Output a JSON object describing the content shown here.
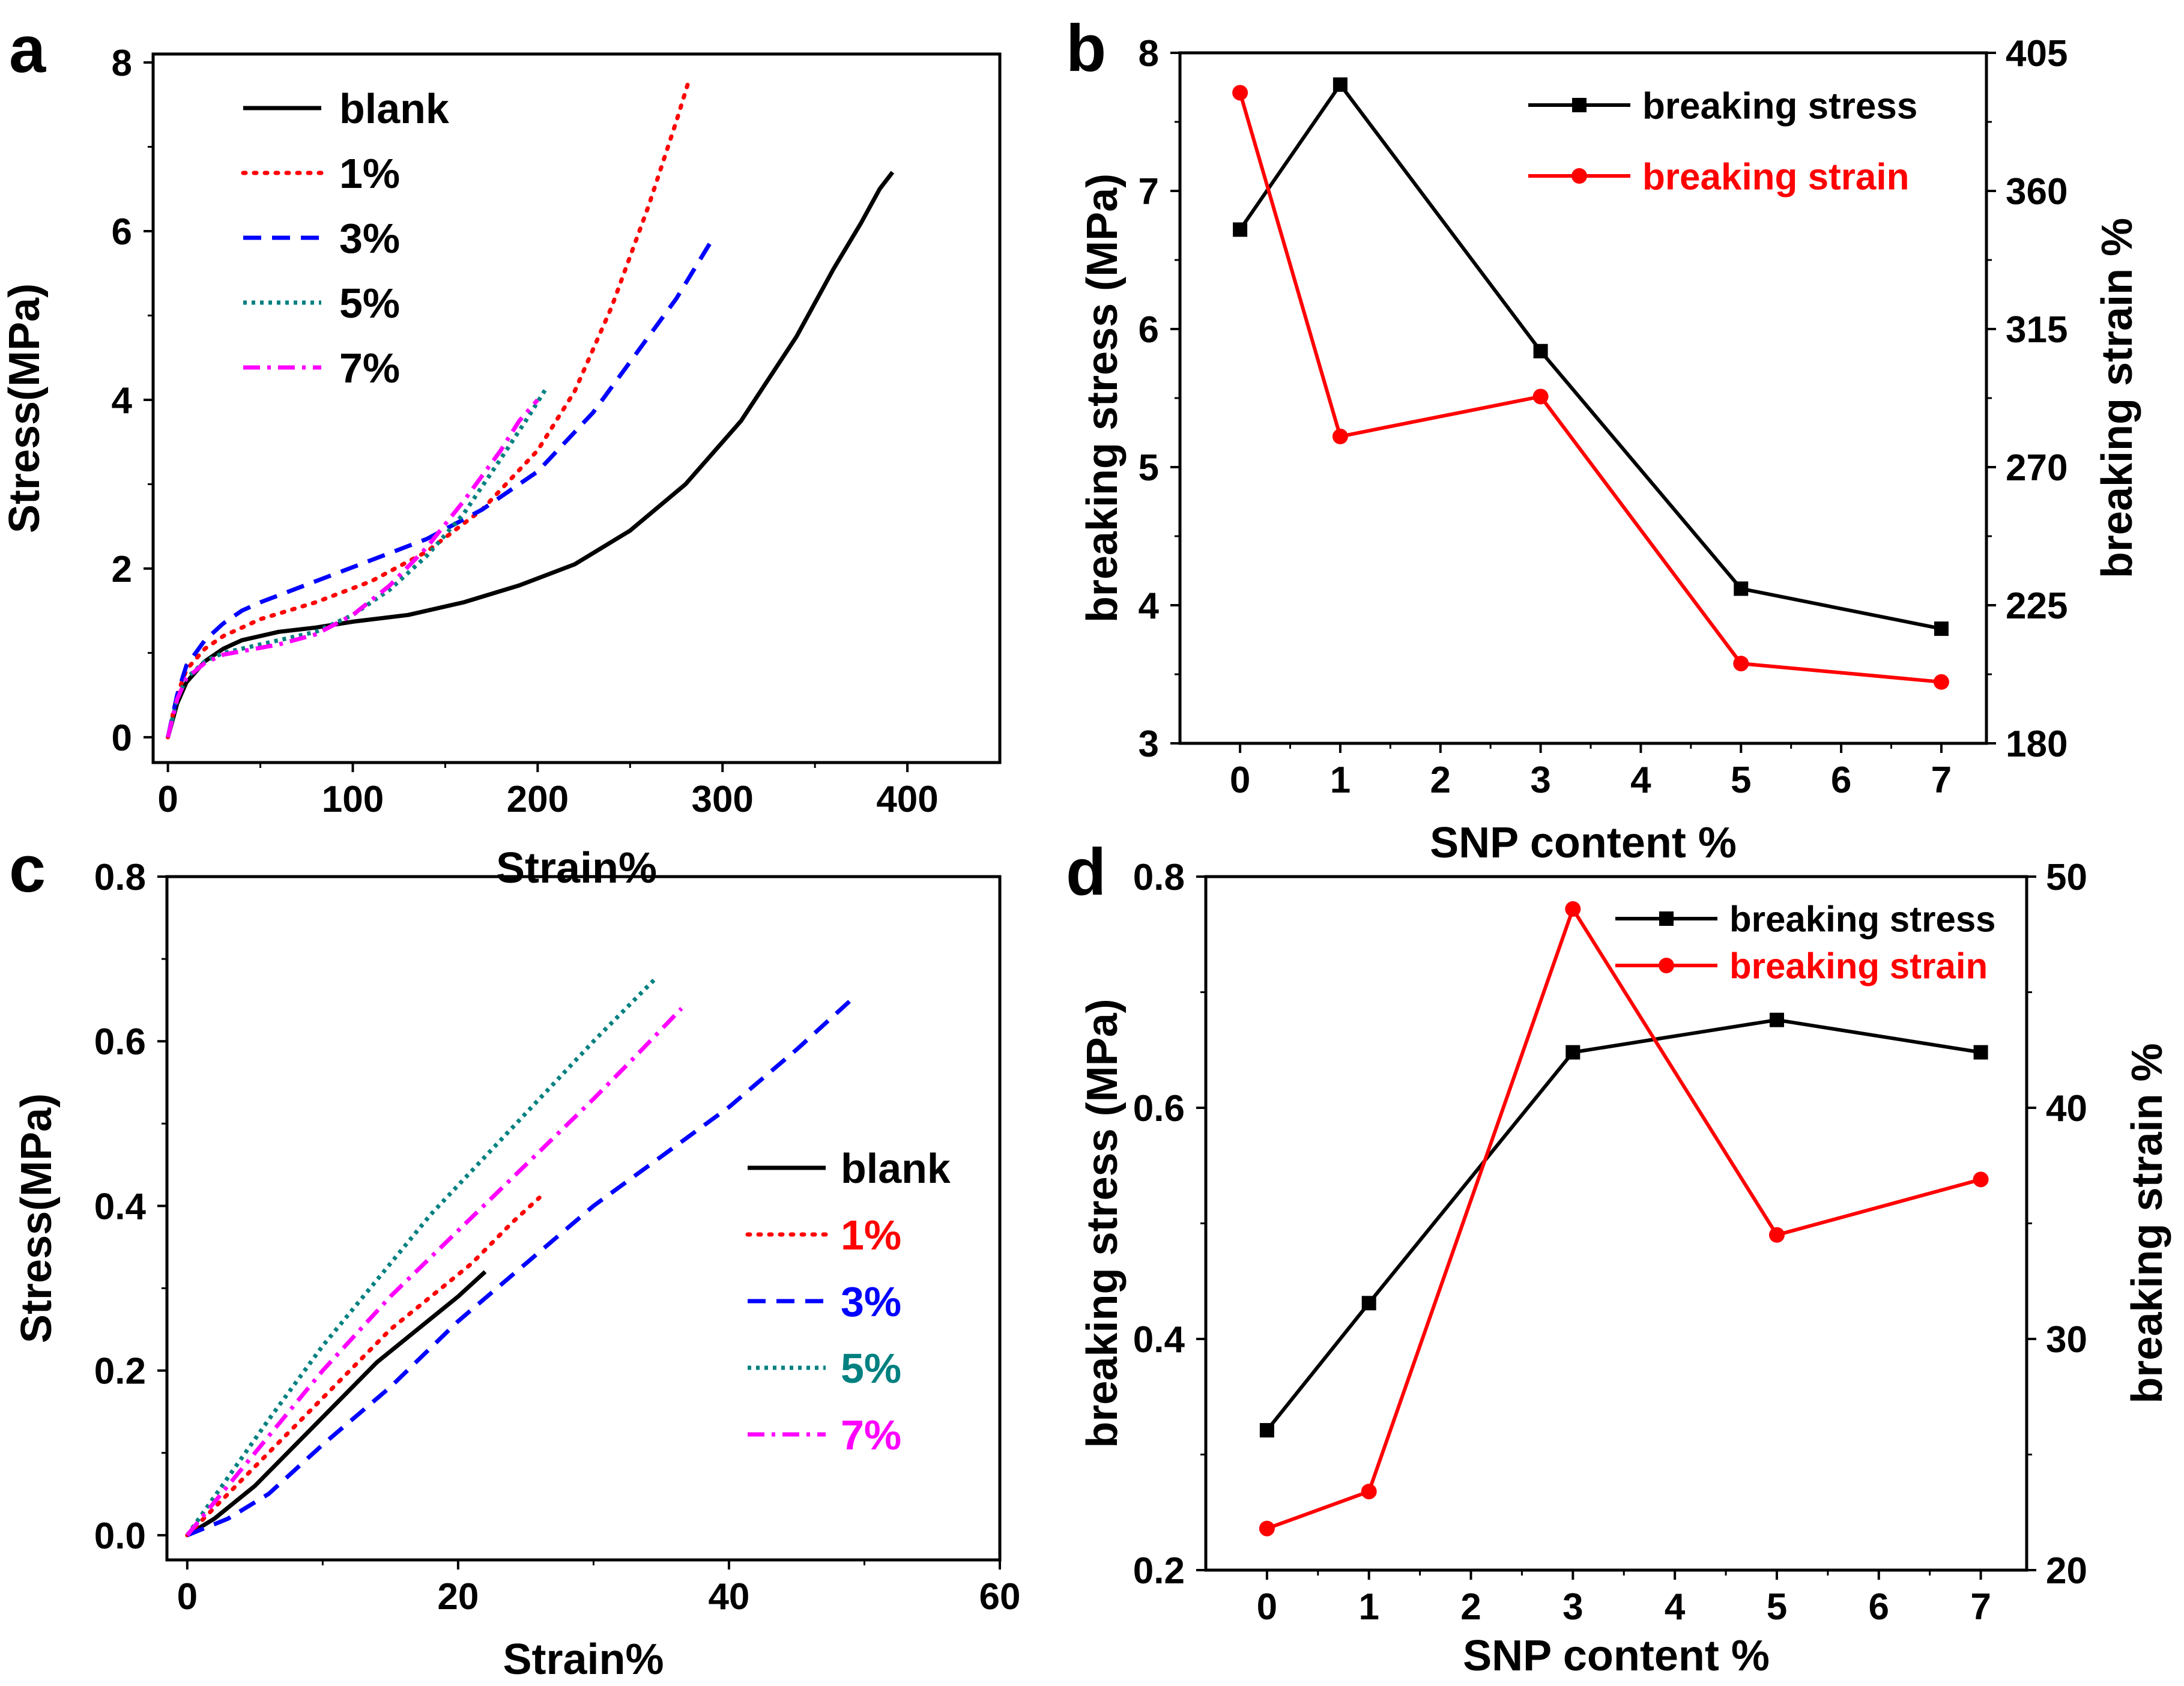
{
  "chart_data": [
    {
      "panel": "a",
      "type": "line",
      "xlabel": "Strain%",
      "ylabel": "Stress(MPa)",
      "xlim": [
        -8,
        450
      ],
      "ylim": [
        -0.3,
        8.1
      ],
      "xticks": [
        0,
        100,
        200,
        300,
        400
      ],
      "yticks": [
        0,
        2,
        4,
        6,
        8
      ],
      "legend_position": "top-left",
      "series": [
        {
          "name": "blank",
          "color": "#000000",
          "dash": "solid",
          "x": [
            0,
            5,
            10,
            20,
            30,
            40,
            60,
            80,
            100,
            130,
            160,
            190,
            220,
            250,
            280,
            310,
            340,
            360,
            375,
            385,
            392
          ],
          "y": [
            0,
            0.4,
            0.65,
            0.9,
            1.05,
            1.15,
            1.25,
            1.3,
            1.37,
            1.45,
            1.6,
            1.8,
            2.05,
            2.45,
            3.0,
            3.75,
            4.75,
            5.55,
            6.1,
            6.5,
            6.7
          ]
        },
        {
          "name": "1%",
          "color": "#ff0000",
          "dash": "dot",
          "x": [
            0,
            5,
            10,
            20,
            30,
            50,
            80,
            110,
            140,
            170,
            200,
            220,
            240,
            260,
            275,
            282
          ],
          "y": [
            0,
            0.5,
            0.8,
            1.05,
            1.2,
            1.4,
            1.6,
            1.85,
            2.2,
            2.7,
            3.4,
            4.1,
            5.1,
            6.3,
            7.3,
            7.8
          ]
        },
        {
          "name": "3%",
          "color": "#0000ff",
          "dash": "dash",
          "x": [
            0,
            5,
            10,
            20,
            30,
            40,
            50,
            80,
            110,
            140,
            170,
            200,
            230,
            255,
            275,
            293
          ],
          "y": [
            0,
            0.5,
            0.85,
            1.15,
            1.35,
            1.5,
            1.6,
            1.85,
            2.1,
            2.35,
            2.7,
            3.15,
            3.85,
            4.6,
            5.2,
            5.85
          ]
        },
        {
          "name": "5%",
          "color": "#008080",
          "dash": "shortdot",
          "x": [
            0,
            5,
            10,
            20,
            30,
            40,
            60,
            80,
            100,
            120,
            140,
            160,
            180,
            195,
            205
          ],
          "y": [
            0,
            0.45,
            0.7,
            0.9,
            1.0,
            1.05,
            1.15,
            1.25,
            1.45,
            1.75,
            2.15,
            2.65,
            3.3,
            3.8,
            4.15
          ]
        },
        {
          "name": "7%",
          "color": "#ff00ff",
          "dash": "dashdot",
          "x": [
            0,
            5,
            10,
            20,
            30,
            40,
            60,
            80,
            100,
            120,
            140,
            160,
            180,
            190,
            200
          ],
          "y": [
            0,
            0.45,
            0.7,
            0.88,
            0.98,
            1.02,
            1.1,
            1.22,
            1.45,
            1.8,
            2.25,
            2.8,
            3.4,
            3.75,
            4.0
          ]
        }
      ]
    },
    {
      "panel": "b",
      "type": "line",
      "xlabel": "SNP content %",
      "ylabel": "breaking stress (MPa)",
      "y2label": "breaking strain %",
      "xlim": [
        -0.6,
        7.45
      ],
      "ylim": [
        3,
        8
      ],
      "y2lim": [
        180,
        405
      ],
      "xticks": [
        0,
        1,
        2,
        3,
        4,
        5,
        6,
        7
      ],
      "yticks": [
        3,
        4,
        5,
        6,
        7,
        8
      ],
      "y2ticks": [
        180,
        225,
        270,
        315,
        360,
        405
      ],
      "legend_position": "top-right",
      "series": [
        {
          "name": "breaking stress",
          "axis": "left",
          "color": "#000000",
          "marker": "square",
          "x": [
            0,
            1,
            3,
            5,
            7
          ],
          "y": [
            6.72,
            7.77,
            5.84,
            4.12,
            3.83
          ]
        },
        {
          "name": "breaking strain",
          "axis": "right",
          "color": "#ff0000",
          "marker": "circle",
          "x": [
            0,
            1,
            3,
            5,
            7
          ],
          "y": [
            392,
            280,
            293,
            206,
            200
          ]
        }
      ]
    },
    {
      "panel": "c",
      "type": "line",
      "xlabel": "Strain%",
      "ylabel": "Stress(MPa)",
      "xlim": [
        -1.5,
        60
      ],
      "ylim": [
        -0.03,
        0.8
      ],
      "xticks": [
        0,
        20,
        40,
        60
      ],
      "yticks": [
        0.0,
        0.2,
        0.4,
        0.6,
        0.8
      ],
      "ytick_labels": [
        "0.0",
        "0.2",
        "0.4",
        "0.6",
        "0.8"
      ],
      "legend_position": "right",
      "series": [
        {
          "name": "blank",
          "color": "#000000",
          "dash": "solid",
          "x": [
            0,
            2,
            5,
            8,
            11,
            14,
            17,
            20,
            22
          ],
          "y": [
            0,
            0.02,
            0.06,
            0.11,
            0.16,
            0.21,
            0.25,
            0.29,
            0.32
          ]
        },
        {
          "name": "1%",
          "color": "#ff0000",
          "dash": "dot",
          "x": [
            0,
            3,
            6,
            9,
            12,
            15,
            18,
            21,
            24,
            26
          ],
          "y": [
            0,
            0.05,
            0.1,
            0.15,
            0.2,
            0.25,
            0.29,
            0.33,
            0.38,
            0.41
          ]
        },
        {
          "name": "3%",
          "color": "#0000ff",
          "dash": "dash",
          "x": [
            0,
            3,
            6,
            10,
            15,
            20,
            25,
            30,
            35,
            40,
            45,
            49
          ],
          "y": [
            0,
            0.02,
            0.05,
            0.11,
            0.18,
            0.26,
            0.33,
            0.4,
            0.46,
            0.52,
            0.59,
            0.65
          ]
        },
        {
          "name": "5%",
          "color": "#008080",
          "dash": "shortdot",
          "x": [
            0,
            3,
            6,
            10,
            14,
            18,
            22,
            26,
            30,
            34.5
          ],
          "y": [
            0,
            0.07,
            0.14,
            0.23,
            0.31,
            0.39,
            0.46,
            0.53,
            0.6,
            0.675
          ]
        },
        {
          "name": "7%",
          "color": "#ff00ff",
          "dash": "dashdot",
          "x": [
            0,
            3,
            6,
            10,
            15,
            20,
            25,
            30,
            33,
            36.5
          ],
          "y": [
            0,
            0.06,
            0.12,
            0.2,
            0.29,
            0.37,
            0.45,
            0.53,
            0.58,
            0.64
          ]
        }
      ]
    },
    {
      "panel": "d",
      "type": "line",
      "xlabel": "SNP content %",
      "ylabel": "breaking stress (MPa)",
      "y2label": "breaking strain %",
      "xlim": [
        -0.6,
        7.45
      ],
      "ylim": [
        0.2,
        0.8
      ],
      "y2lim": [
        20,
        50
      ],
      "xticks": [
        0,
        1,
        2,
        3,
        4,
        5,
        6,
        7
      ],
      "yticks": [
        0.2,
        0.4,
        0.6,
        0.8
      ],
      "ytick_labels": [
        "0.2",
        "0.4",
        "0.6",
        "0.8"
      ],
      "y2ticks": [
        20,
        30,
        40,
        50
      ],
      "legend_position": "top-right",
      "series": [
        {
          "name": "breaking stress",
          "axis": "left",
          "color": "#000000",
          "marker": "square",
          "x": [
            0,
            1,
            3,
            5,
            7
          ],
          "y": [
            0.321,
            0.431,
            0.648,
            0.676,
            0.648
          ]
        },
        {
          "name": "breaking strain",
          "axis": "right",
          "color": "#ff0000",
          "marker": "circle",
          "x": [
            0,
            1,
            3,
            5,
            7
          ],
          "y": [
            21.8,
            23.4,
            48.6,
            34.5,
            36.9
          ]
        }
      ]
    }
  ]
}
